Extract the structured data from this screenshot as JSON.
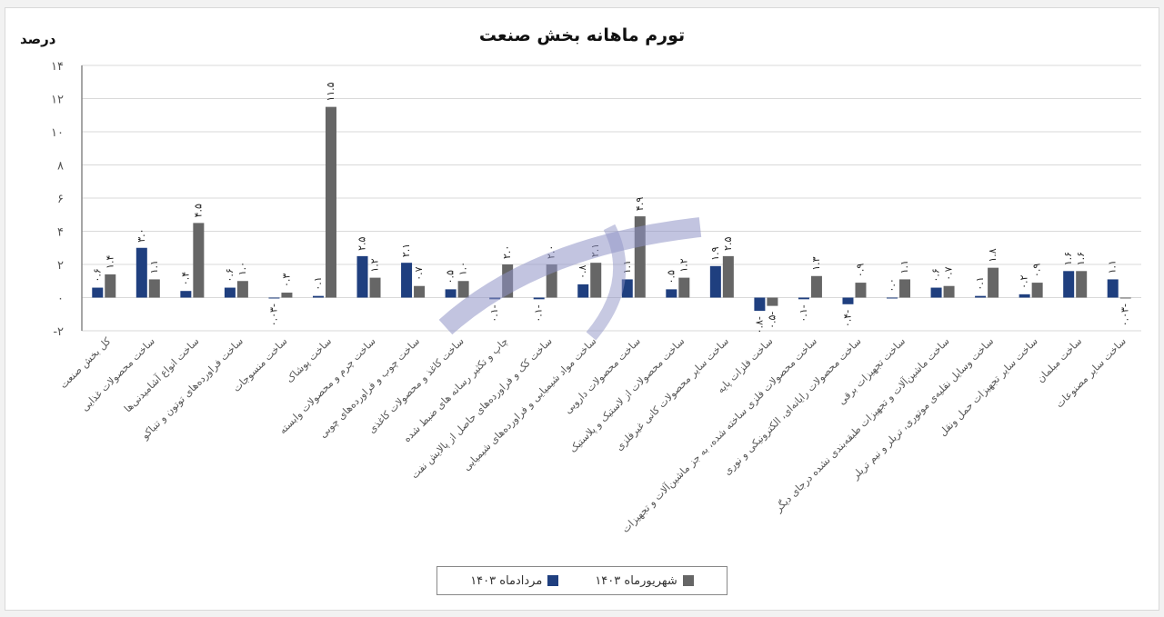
{
  "chart_data": {
    "type": "bar",
    "title": "تورم ماهانه بخش صنعت",
    "ylabel": "درصد",
    "xlabel": "",
    "ylim": [
      -2,
      14
    ],
    "yticks": [
      -2,
      0,
      2,
      4,
      6,
      8,
      10,
      12,
      14
    ],
    "ytick_labels": [
      "-۲",
      "۰",
      "۲",
      "۴",
      "۶",
      "۸",
      "۱۰",
      "۱۲",
      "۱۴"
    ],
    "grid": true,
    "legend_position": "bottom",
    "categories": [
      "کل بخش صنعت",
      "ساخت محصولات غذایی",
      "ساخت انواع آشامیدنی‌ها",
      "ساخت فراورده‌های توتون و تنباکو",
      "ساخت منسوجات",
      "ساخت پوشاک",
      "ساخت چرم و محصولات وابسته",
      "ساخت چوب و فراورده‌های چوبی",
      "ساخت کاغذ و محصولات کاغذی",
      "چاپ و تکثیر رسانه های ضبط شده",
      "ساخت کک و فراورده‌های حاصل از پالایش نفت",
      "ساخت مواد شیمیایی و فراورده‌های شیمیایی",
      "ساخت محصولات دارویی",
      "ساخت محصولات از لاستیک و پلاستیک",
      "ساخت سایر محصولات کانی غیرفلزی",
      "ساخت فلزات پایه",
      "ساخت محصولات فلزی ساخته شده، به جز ماشین‌آلات و تجهیزات",
      "ساخت محصولات رایانه‌ای، الکترونیکی و نوری",
      "ساخت تجهیزات برقی",
      "ساخت ماشین‌آلات و تجهیزات طبقه‌بندی نشده درجای دیگر",
      "ساخت وسایل نقلیه‌ی موتوری، تریلر و نیم تریلر",
      "ساخت سایر تجهیزات حمل ونقل",
      "ساخت مبلمان",
      "ساخت سایر مصنوعات"
    ],
    "series": [
      {
        "name": "مردادماه ۱۴۰۳",
        "color": "#1f3f7f",
        "values": [
          0.6,
          3.0,
          0.4,
          0.6,
          -0.03,
          0.1,
          2.5,
          2.1,
          0.5,
          -0.1,
          -0.1,
          0.8,
          1.1,
          0.5,
          1.9,
          -0.8,
          -0.1,
          -0.4,
          0.0,
          0.6,
          0.1,
          0.2,
          1.6,
          1.1
        ]
      },
      {
        "name": "شهریورماه ۱۴۰۳",
        "color": "#666666",
        "values": [
          1.4,
          1.1,
          4.5,
          1.0,
          0.3,
          11.5,
          1.2,
          0.7,
          1.0,
          2.0,
          2.0,
          2.1,
          4.9,
          1.2,
          2.5,
          -0.5,
          1.3,
          0.9,
          1.1,
          0.7,
          1.8,
          0.9,
          1.6,
          -0.03
        ]
      }
    ]
  },
  "legend": {
    "series1_label": "مردادماه ۱۴۰۳",
    "series2_label": "شهریورماه ۱۴۰۳"
  },
  "colors": {
    "series1": "#1f3f7f",
    "series2": "#666666",
    "grid": "#d9d9d9",
    "watermark": "#8f93c6"
  }
}
